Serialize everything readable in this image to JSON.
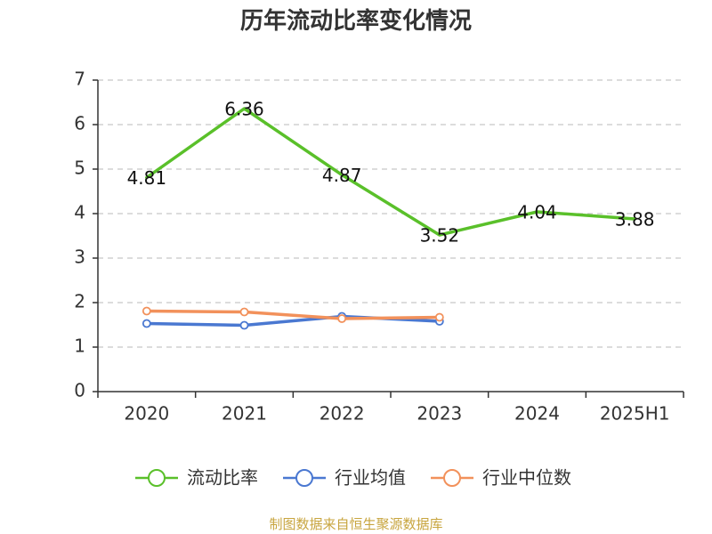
{
  "chart_data": {
    "type": "line",
    "title": "历年流动比率变化情况",
    "categories": [
      "2020",
      "2021",
      "2022",
      "2023",
      "2024",
      "2025H1"
    ],
    "ylim": [
      0,
      7
    ],
    "yticks": [
      "0",
      "1",
      "2",
      "3",
      "4",
      "5",
      "6",
      "7"
    ],
    "grid": true,
    "legend_position": "bottom",
    "series": [
      {
        "name": "流动比率",
        "color": "#5ac02a",
        "values": [
          4.81,
          6.36,
          4.87,
          3.52,
          4.04,
          3.88
        ],
        "labels": [
          "4.81",
          "6.36",
          "4.87",
          "3.52",
          "4.04",
          "3.88"
        ],
        "show_markers": false
      },
      {
        "name": "行业均值",
        "color": "#4a78d1",
        "values": [
          1.53,
          1.49,
          1.69,
          1.58,
          null,
          null
        ],
        "show_markers": true
      },
      {
        "name": "行业中位数",
        "color": "#f2915b",
        "values": [
          1.81,
          1.79,
          1.64,
          1.67,
          null,
          null
        ],
        "show_markers": true
      }
    ]
  },
  "source_note": "制图数据来自恒生聚源数据库"
}
